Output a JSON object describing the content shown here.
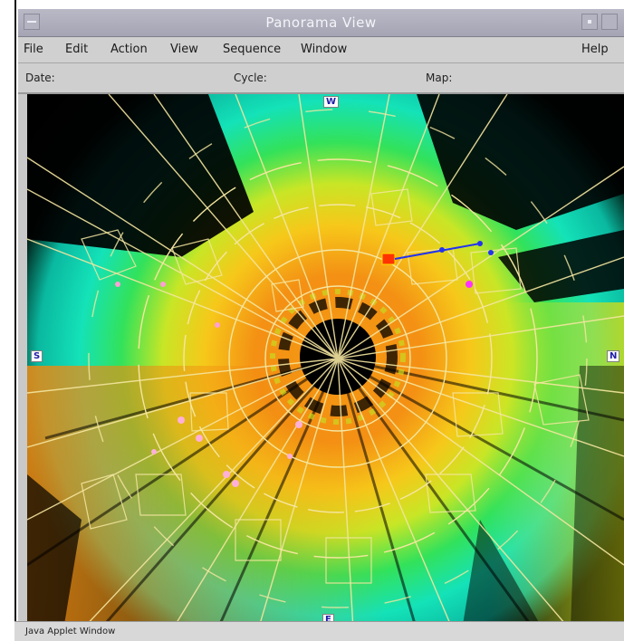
{
  "window": {
    "title": "Panorama View"
  },
  "menu": {
    "file": "File",
    "edit": "Edit",
    "action": "Action",
    "view": "View",
    "sequence": "Sequence",
    "window": "Window",
    "help": "Help"
  },
  "info": {
    "date_label": "Date:",
    "cycle_label": "Cycle:",
    "map_label": "Map:"
  },
  "compass": {
    "north": "N",
    "south": "S",
    "west": "W",
    "east": "E"
  },
  "status": {
    "text": "Java Applet Window"
  },
  "colors": {
    "titlebar": "#aeaebd",
    "far_field": "#00e0c0",
    "mid_field": "#2be060",
    "near_field": "#f08a10",
    "grid_lines": "#f5e6a0",
    "marker_red": "#ff3300",
    "marker_blue": "#2233ee"
  }
}
